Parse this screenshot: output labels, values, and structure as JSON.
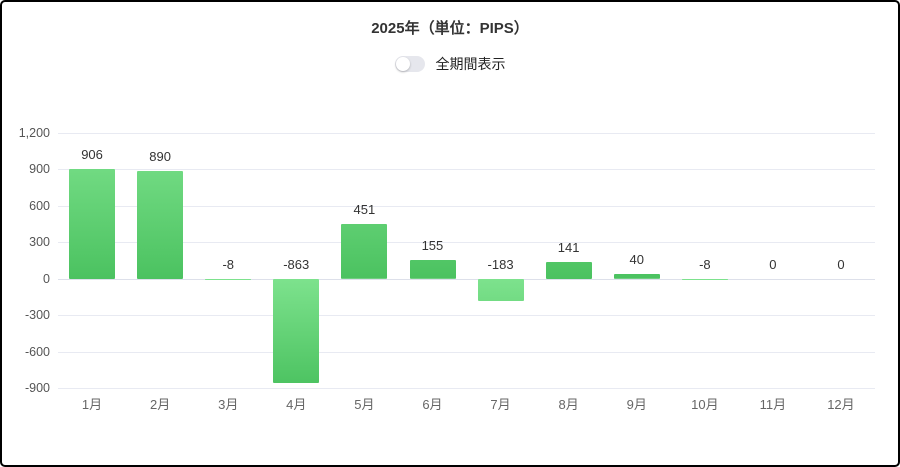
{
  "header": {
    "title": "2025年（単位：PIPS）",
    "toggle_label": "全期間表示",
    "toggle_state": "off"
  },
  "chart_data": {
    "type": "bar",
    "title": "2025年（単位：PIPS）",
    "categories": [
      "1月",
      "2月",
      "3月",
      "4月",
      "5月",
      "6月",
      "7月",
      "8月",
      "9月",
      "10月",
      "11月",
      "12月"
    ],
    "values": [
      906,
      890,
      -8,
      -863,
      451,
      155,
      -183,
      141,
      40,
      -8,
      0,
      0
    ],
    "value_labels": [
      "906",
      "890",
      "-8",
      "-863",
      "451",
      "155",
      "-183",
      "141",
      "40",
      "-8",
      "0",
      "0"
    ],
    "xlabel": "",
    "ylabel": "",
    "ylim": [
      -900,
      1200
    ],
    "yticks": [
      1200,
      900,
      600,
      300,
      0,
      -300,
      -600,
      -900
    ],
    "grid": true,
    "legend": false
  },
  "colors": {
    "bar_gradient_top": "#7de28d",
    "bar_gradient_bottom": "#4bc260",
    "grid_line": "#e8eaf2",
    "zero_line": "#dde0ea",
    "axis_text": "#555555",
    "value_text": "#333333",
    "title_text": "#333333",
    "toggle_track": "#e6e7ed",
    "toggle_knob": "#ffffff",
    "card_border": "#000000",
    "background": "#ffffff"
  }
}
